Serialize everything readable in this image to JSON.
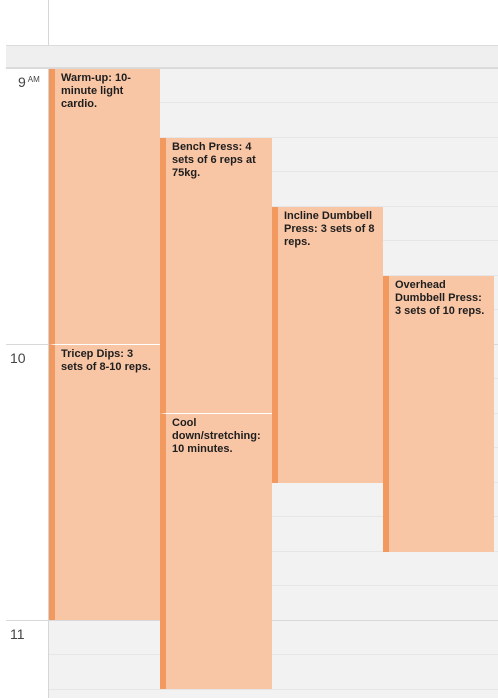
{
  "time_labels": {
    "t9": "9",
    "t9_ampm": "AM",
    "t10": "10",
    "t11": "11"
  },
  "events": {
    "warmup": "Warm-up: 10-minute light cardio.",
    "bench": "Bench Press: 4 sets of 6 reps at 75kg.",
    "incline": "Incline Dumbbell Press: 3 sets of 8 reps.",
    "overhead": "Overhead Dumbbell Press: 3 sets of 10 reps.",
    "dips": "Tricep Dips: 3 sets of 8-10 reps.",
    "cooldown": "Cool down/stretching: 10 minutes."
  },
  "colors": {
    "event_fill": "#f8c5a5",
    "event_accent": "#f2995f",
    "grid_background": "#f2f2f2"
  }
}
